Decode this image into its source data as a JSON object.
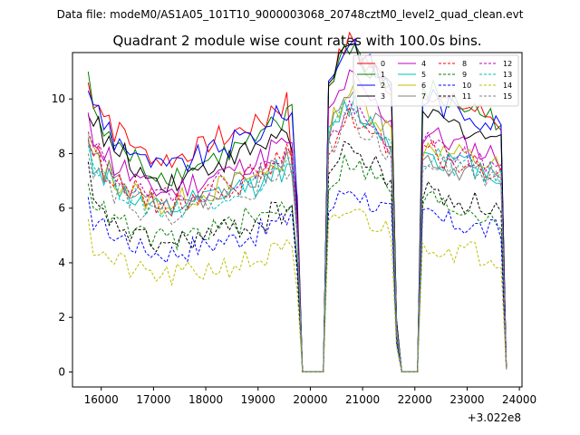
{
  "suptitle": "Data file: modeM0/AS1A05_101T10_9000003068_20748cztM0_level2_quad_clean.evt",
  "chart_data": {
    "type": "line",
    "title": "Quadrant 2 module wise count rates with 100.0s bins.",
    "xlabel": "",
    "ylabel": "",
    "x_offset_label": "+3.022e8",
    "xlim": [
      15450,
      24050
    ],
    "ylim": [
      -0.55,
      11.7
    ],
    "xticks": [
      16000,
      17000,
      18000,
      19000,
      20000,
      21000,
      22000,
      23000,
      24000
    ],
    "xtick_labels": [
      "16000",
      "17000",
      "18000",
      "19000",
      "20000",
      "21000",
      "22000",
      "23000",
      "24000"
    ],
    "yticks": [
      0,
      2,
      4,
      6,
      8,
      10
    ],
    "ytick_labels": [
      "0",
      "2",
      "4",
      "6",
      "8",
      "10"
    ],
    "legend_position": "upper-right",
    "legend_columns": 4,
    "segments": [
      {
        "start": 15750,
        "end": 19650,
        "base_multiplier": [
          1.0,
          0.94,
          0.88,
          0.84,
          0.8,
          0.78,
          0.78,
          0.8,
          0.82,
          0.84,
          0.86,
          0.88,
          0.9,
          0.92,
          0.97,
          1.0
        ]
      },
      {
        "start": 20350,
        "end": 21550,
        "base_multiplier": [
          1.0,
          1.04,
          1.08,
          1.12,
          1.14,
          1.14,
          1.1,
          1.08,
          1.06,
          1.04,
          1.02,
          1.0,
          0.98
        ]
      },
      {
        "start": 22150,
        "end": 23650,
        "base_multiplier": [
          1.0,
          1.02,
          1.02,
          1.0,
          0.98,
          0.98,
          0.97,
          0.97,
          0.96,
          0.96,
          0.95,
          0.94,
          0.93,
          0.93,
          0.92,
          0.9
        ]
      }
    ],
    "gaps": [
      {
        "x": [
          19750,
          19850,
          19950,
          20050,
          20150,
          20250
        ],
        "values": [
          5.5,
          0.0,
          0.0,
          0.0,
          0.0,
          0.0
        ]
      },
      {
        "x": [
          21650,
          21750,
          21850,
          21950,
          22050
        ],
        "values": [
          1.5,
          0.0,
          0.0,
          0.0,
          0.0
        ]
      },
      {
        "x": [
          23750
        ],
        "values": [
          0.15
        ]
      }
    ],
    "series": [
      {
        "name": "0",
        "color": "#ff0000",
        "dash": "solid",
        "level": [
          10.0,
          10.6,
          10.1
        ],
        "start": 10.6,
        "end": 7.5
      },
      {
        "name": "1",
        "color": "#008000",
        "dash": "solid",
        "level": [
          9.3,
          10.5,
          10.1
        ],
        "start": 11.0,
        "end": 9.8
      },
      {
        "name": "2",
        "color": "#0000ff",
        "dash": "solid",
        "level": [
          9.6,
          10.6,
          9.9
        ],
        "start": 10.3,
        "end": 9.5
      },
      {
        "name": "3",
        "color": "#000000",
        "dash": "solid",
        "level": [
          9.0,
          10.4,
          9.3
        ],
        "start": 9.4,
        "end": 8.1
      },
      {
        "name": "4",
        "color": "#bf00bf",
        "dash": "solid",
        "level": [
          8.5,
          9.4,
          8.6
        ],
        "start": 9.5,
        "end": 8.4
      },
      {
        "name": "5",
        "color": "#00bfbf",
        "dash": "solid",
        "level": [
          7.6,
          8.6,
          7.9
        ],
        "start": 8.6,
        "end": 7.6
      },
      {
        "name": "6",
        "color": "#bfbf00",
        "dash": "solid",
        "level": [
          7.9,
          9.0,
          8.2
        ],
        "start": 8.7,
        "end": 8.0
      },
      {
        "name": "7",
        "color": "#808080",
        "dash": "solid",
        "level": [
          7.8,
          8.7,
          7.7
        ],
        "start": 8.4,
        "end": 7.2
      },
      {
        "name": "8",
        "color": "#ff0000",
        "dash": "dashed",
        "level": [
          7.9,
          8.2,
          7.9
        ],
        "start": 8.5,
        "end": 7.8
      },
      {
        "name": "9",
        "color": "#008000",
        "dash": "dashed",
        "level": [
          6.2,
          6.8,
          6.2
        ],
        "start": 6.9,
        "end": 6.1
      },
      {
        "name": "10",
        "color": "#0000ff",
        "dash": "dashed",
        "level": [
          5.6,
          5.9,
          5.6
        ],
        "start": 6.4,
        "end": 5.9
      },
      {
        "name": "11",
        "color": "#000000",
        "dash": "dashed",
        "level": [
          6.0,
          7.2,
          6.5
        ],
        "start": 7.7,
        "end": 6.1
      },
      {
        "name": "12",
        "color": "#bf00bf",
        "dash": "dashed",
        "level": [
          8.1,
          8.4,
          8.2
        ],
        "start": 8.8,
        "end": 8.0
      },
      {
        "name": "13",
        "color": "#00bfbf",
        "dash": "dashed",
        "level": [
          7.6,
          8.5,
          7.8
        ],
        "start": 8.3,
        "end": 7.9
      },
      {
        "name": "14",
        "color": "#bfbf00",
        "dash": "dashed",
        "level": [
          4.5,
          5.2,
          4.6
        ],
        "start": 5.6,
        "end": 4.6
      },
      {
        "name": "15",
        "color": "#808080",
        "dash": "dashed",
        "level": [
          7.5,
          8.1,
          7.7
        ],
        "start": 8.0,
        "end": 7.4
      }
    ]
  }
}
